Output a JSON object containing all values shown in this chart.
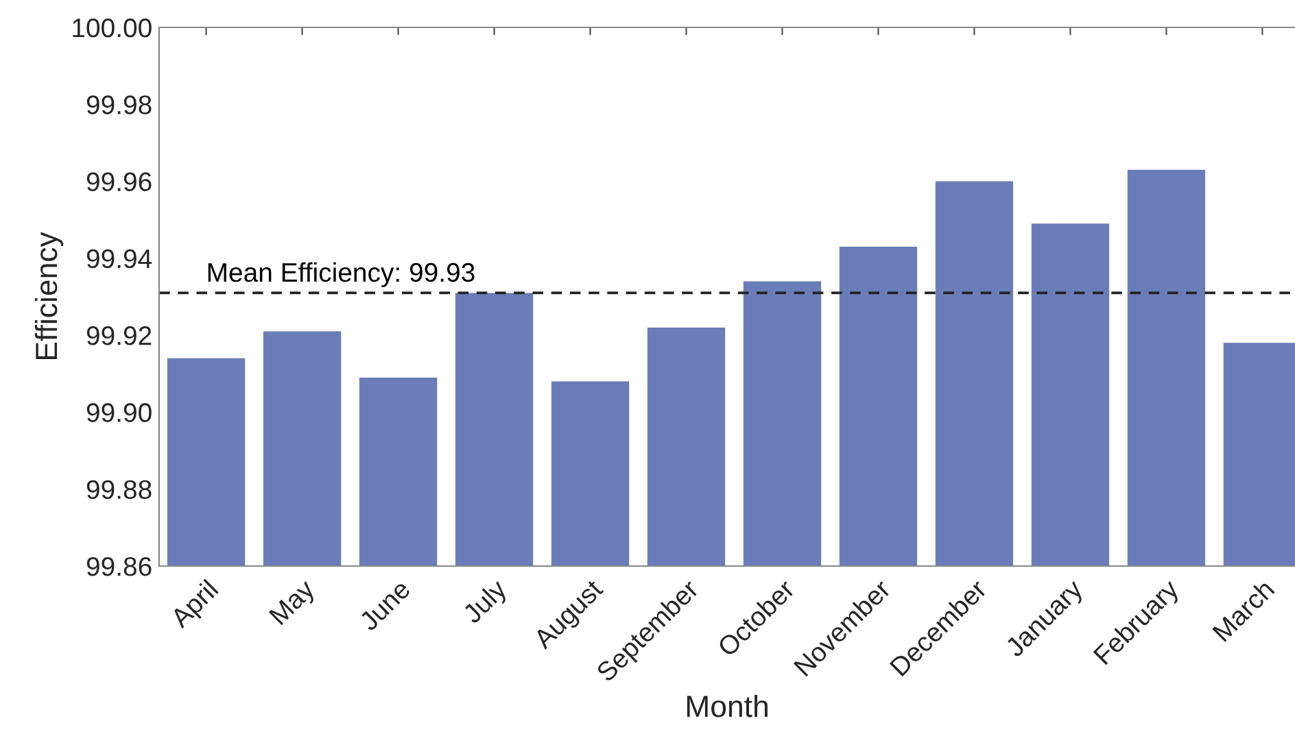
{
  "chart_data": {
    "type": "bar",
    "xlabel": "Month",
    "ylabel": "Efficiency",
    "categories": [
      "April",
      "May",
      "June",
      "July",
      "August",
      "September",
      "October",
      "November",
      "December",
      "January",
      "February",
      "March"
    ],
    "values": [
      99.914,
      99.921,
      99.909,
      99.931,
      99.908,
      99.922,
      99.934,
      99.943,
      99.96,
      99.949,
      99.963,
      99.918
    ],
    "color": "#6a7db8",
    "ylim": [
      99.86,
      100.0
    ],
    "yticks": [
      {
        "value": 99.86,
        "label": "99.86"
      },
      {
        "value": 99.88,
        "label": "99.88"
      },
      {
        "value": 99.9,
        "label": "99.90"
      },
      {
        "value": 99.92,
        "label": "99.92"
      },
      {
        "value": 99.94,
        "label": "99.94"
      },
      {
        "value": 99.96,
        "label": "99.96"
      },
      {
        "value": 99.98,
        "label": "99.98"
      },
      {
        "value": 100.0,
        "label": "100.00"
      }
    ],
    "ref_lines": [
      {
        "axis": "y",
        "value": 99.931,
        "label": "Mean Efficiency: 99.93",
        "color": "#222222",
        "line_style": "dashed"
      }
    ],
    "grid": false,
    "legend": false
  }
}
